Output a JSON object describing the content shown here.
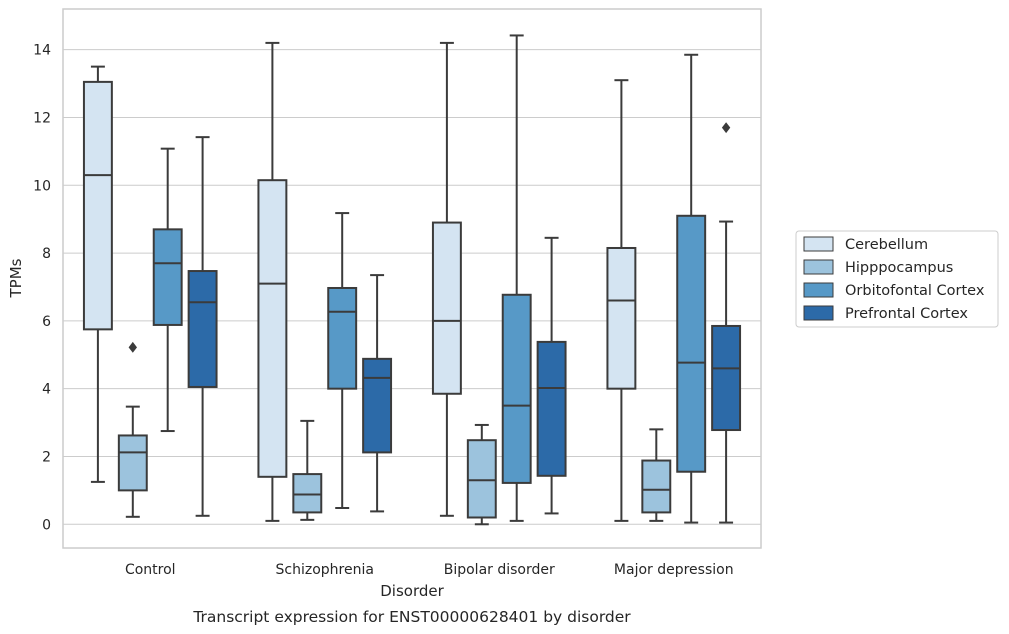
{
  "chart_data": {
    "type": "box",
    "title": "",
    "caption": "Transcript expression for ENST00000628401 by disorder",
    "xlabel": "Disorder",
    "ylabel": "TPMs",
    "ylim": [
      -0.7,
      15.2
    ],
    "yticks": [
      0,
      2,
      4,
      6,
      8,
      10,
      12,
      14
    ],
    "grid": true,
    "legend_position": "right",
    "categories": [
      "Control",
      "Schizophrenia",
      "Bipolar disorder",
      "Major depression"
    ],
    "series": [
      {
        "name": "Cerebellum",
        "color": "#d4e4f2",
        "boxes": [
          {
            "whisker_low": 1.25,
            "q1": 5.75,
            "median": 10.3,
            "q3": 13.05,
            "whisker_high": 13.5,
            "outliers": []
          },
          {
            "whisker_low": 0.1,
            "q1": 1.4,
            "median": 7.1,
            "q3": 10.15,
            "whisker_high": 14.2,
            "outliers": []
          },
          {
            "whisker_low": 0.25,
            "q1": 3.85,
            "median": 6.0,
            "q3": 8.9,
            "whisker_high": 14.2,
            "outliers": []
          },
          {
            "whisker_low": 0.1,
            "q1": 4.0,
            "median": 6.6,
            "q3": 8.15,
            "whisker_high": 13.1,
            "outliers": []
          }
        ]
      },
      {
        "name": "Hipppocampus",
        "color": "#9cc3dd",
        "boxes": [
          {
            "whisker_low": 0.22,
            "q1": 1.0,
            "median": 2.12,
            "q3": 2.62,
            "whisker_high": 3.47,
            "outliers": [
              5.22
            ]
          },
          {
            "whisker_low": 0.13,
            "q1": 0.35,
            "median": 0.88,
            "q3": 1.48,
            "whisker_high": 3.05,
            "outliers": []
          },
          {
            "whisker_low": 0.0,
            "q1": 0.2,
            "median": 1.3,
            "q3": 2.48,
            "whisker_high": 2.93,
            "outliers": []
          },
          {
            "whisker_low": 0.1,
            "q1": 0.35,
            "median": 1.02,
            "q3": 1.88,
            "whisker_high": 2.8,
            "outliers": []
          }
        ]
      },
      {
        "name": "Orbitofontal Cortex",
        "color": "#5799c7",
        "boxes": [
          {
            "whisker_low": 2.75,
            "q1": 5.88,
            "median": 7.7,
            "q3": 8.7,
            "whisker_high": 11.08,
            "outliers": []
          },
          {
            "whisker_low": 0.48,
            "q1": 4.0,
            "median": 6.27,
            "q3": 6.97,
            "whisker_high": 9.18,
            "outliers": []
          },
          {
            "whisker_low": 0.1,
            "q1": 1.22,
            "median": 3.5,
            "q3": 6.77,
            "whisker_high": 14.42,
            "outliers": []
          },
          {
            "whisker_low": 0.05,
            "q1": 1.55,
            "median": 4.77,
            "q3": 9.1,
            "whisker_high": 13.85,
            "outliers": []
          }
        ]
      },
      {
        "name": "Prefrontal Cortex",
        "color": "#2c6aa8",
        "boxes": [
          {
            "whisker_low": 0.25,
            "q1": 4.05,
            "median": 6.55,
            "q3": 7.47,
            "whisker_high": 11.42,
            "outliers": []
          },
          {
            "whisker_low": 0.38,
            "q1": 2.12,
            "median": 4.32,
            "q3": 4.88,
            "whisker_high": 7.35,
            "outliers": []
          },
          {
            "whisker_low": 0.32,
            "q1": 1.43,
            "median": 4.02,
            "q3": 5.38,
            "whisker_high": 8.45,
            "outliers": []
          },
          {
            "whisker_low": 0.05,
            "q1": 2.78,
            "median": 4.6,
            "q3": 5.85,
            "whisker_high": 8.93,
            "outliers": [
              11.7
            ]
          }
        ]
      }
    ]
  }
}
